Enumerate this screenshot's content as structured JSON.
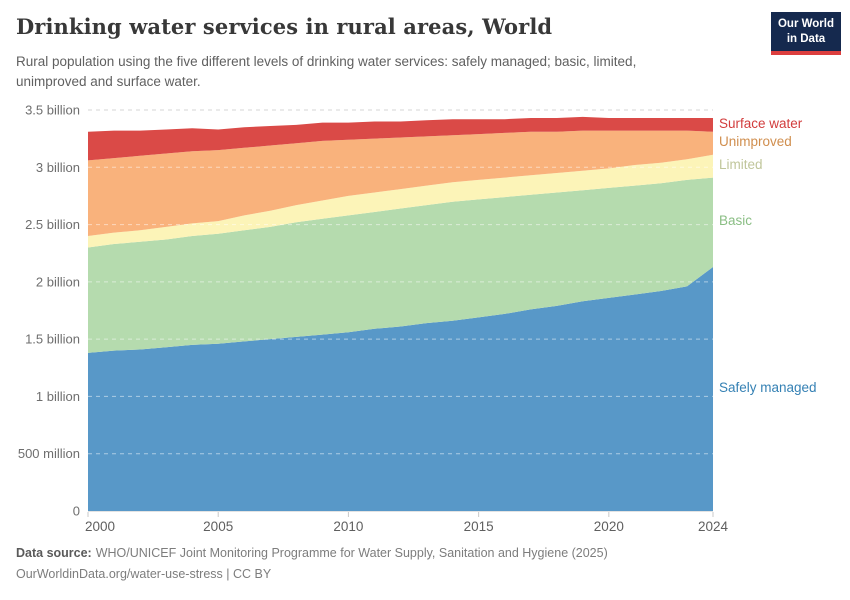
{
  "header": {
    "logo_line1": "Our World",
    "logo_line2": "in Data",
    "logo_bg": "#15294e",
    "logo_accent": "#dc3e3e"
  },
  "footer": {
    "source_label": "Data source:",
    "source_text": "WHO/UNICEF Joint Monitoring Programme for Water Supply, Sanitation and Hygiene (2025)",
    "link_line": "OurWorldinData.org/water-use-stress | CC BY"
  },
  "chart_data": {
    "type": "area",
    "stacked": true,
    "title": "Drinking water services in rural areas, World",
    "subtitle": "Rural population using the five different levels of drinking water services: safely managed; basic, limited, unimproved and surface water.",
    "values_unit": "billions of people",
    "x": [
      2000,
      2001,
      2002,
      2003,
      2004,
      2005,
      2006,
      2007,
      2008,
      2009,
      2010,
      2011,
      2012,
      2013,
      2014,
      2015,
      2016,
      2017,
      2018,
      2019,
      2020,
      2021,
      2022,
      2023,
      2024
    ],
    "stack_order": "bottom-to-top",
    "series": [
      {
        "name": "Safely managed",
        "color": "#5898c8",
        "label_color": "#3581b4",
        "values": [
          1.38,
          1.4,
          1.41,
          1.43,
          1.45,
          1.46,
          1.48,
          1.5,
          1.52,
          1.54,
          1.56,
          1.59,
          1.61,
          1.64,
          1.66,
          1.69,
          1.72,
          1.76,
          1.79,
          1.83,
          1.86,
          1.89,
          1.92,
          1.96,
          2.13
        ]
      },
      {
        "name": "Basic",
        "color": "#b5dbae",
        "label_color": "#8abe84",
        "values": [
          0.92,
          0.93,
          0.94,
          0.94,
          0.95,
          0.96,
          0.97,
          0.98,
          1.0,
          1.01,
          1.02,
          1.02,
          1.03,
          1.03,
          1.04,
          1.03,
          1.02,
          1.0,
          0.99,
          0.97,
          0.96,
          0.95,
          0.94,
          0.93,
          0.78
        ]
      },
      {
        "name": "Limited",
        "color": "#fcf4b8",
        "label_color": "#c0c69b",
        "values": [
          0.1,
          0.1,
          0.1,
          0.11,
          0.11,
          0.11,
          0.13,
          0.14,
          0.15,
          0.16,
          0.17,
          0.17,
          0.17,
          0.17,
          0.17,
          0.17,
          0.17,
          0.17,
          0.17,
          0.17,
          0.17,
          0.18,
          0.18,
          0.18,
          0.2
        ]
      },
      {
        "name": "Unimproved",
        "color": "#f9b27c",
        "label_color": "#d08e4e",
        "values": [
          0.66,
          0.65,
          0.65,
          0.64,
          0.63,
          0.62,
          0.59,
          0.57,
          0.54,
          0.52,
          0.49,
          0.47,
          0.45,
          0.43,
          0.41,
          0.4,
          0.39,
          0.38,
          0.36,
          0.35,
          0.33,
          0.3,
          0.28,
          0.25,
          0.2
        ]
      },
      {
        "name": "Surface water",
        "color": "#da4a47",
        "label_color": "#d23c3c",
        "values": [
          0.25,
          0.24,
          0.22,
          0.21,
          0.2,
          0.18,
          0.18,
          0.17,
          0.16,
          0.16,
          0.15,
          0.15,
          0.14,
          0.14,
          0.14,
          0.13,
          0.12,
          0.12,
          0.12,
          0.12,
          0.11,
          0.11,
          0.11,
          0.11,
          0.12
        ]
      }
    ],
    "xticks": [
      2000,
      2005,
      2010,
      2015,
      2020,
      2024
    ],
    "yticks": [
      {
        "value": 0,
        "label": "0"
      },
      {
        "value": 0.5,
        "label": "500 million"
      },
      {
        "value": 1,
        "label": "1 billion"
      },
      {
        "value": 1.5,
        "label": "1.5 billion"
      },
      {
        "value": 2,
        "label": "2 billion"
      },
      {
        "value": 2.5,
        "label": "2.5 billion"
      },
      {
        "value": 3,
        "label": "3 billion"
      },
      {
        "value": 3.5,
        "label": "3.5 billion"
      }
    ],
    "ylim": [
      0,
      3.5
    ],
    "xlim": [
      2000,
      2024
    ],
    "grid": "horizontal-dashed",
    "legend_position": "right-of-plot"
  }
}
